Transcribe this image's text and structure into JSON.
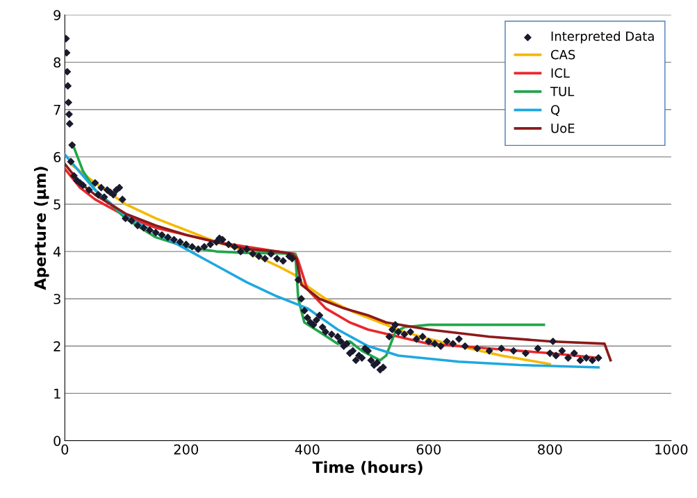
{
  "chart_data": {
    "type": "line",
    "xlabel": "Time (hours)",
    "ylabel": "Aperture (µm)",
    "xlim": [
      0,
      1000
    ],
    "ylim": [
      0,
      9
    ],
    "xticks": [
      0,
      200,
      400,
      600,
      800,
      1000
    ],
    "yticks": [
      0,
      1,
      2,
      3,
      4,
      5,
      6,
      7,
      8,
      9
    ],
    "grid": "y",
    "legend": "top right",
    "series": [
      {
        "name": "Interpreted Data",
        "type": "scatter",
        "marker": "diamond",
        "color": "#1a1a2e",
        "x": [
          2,
          3,
          4,
          5,
          6,
          7,
          8,
          12,
          10,
          15,
          20,
          25,
          30,
          40,
          50,
          55,
          60,
          65,
          70,
          75,
          80,
          85,
          90,
          95,
          100,
          110,
          120,
          130,
          140,
          150,
          160,
          170,
          180,
          190,
          200,
          210,
          220,
          230,
          240,
          250,
          255,
          260,
          270,
          280,
          290,
          300,
          310,
          320,
          330,
          340,
          350,
          360,
          370,
          375,
          385,
          390,
          395,
          400,
          405,
          410,
          415,
          420,
          425,
          430,
          440,
          450,
          455,
          460,
          465,
          470,
          475,
          480,
          485,
          490,
          495,
          500,
          505,
          510,
          515,
          520,
          525,
          535,
          540,
          545,
          550,
          560,
          570,
          580,
          590,
          600,
          610,
          620,
          630,
          640,
          650,
          660,
          680,
          700,
          720,
          740,
          760,
          780,
          800,
          805,
          810,
          820,
          830,
          840,
          850,
          860,
          870,
          880
        ],
        "values": [
          8.5,
          8.2,
          7.8,
          7.5,
          7.15,
          6.9,
          6.7,
          6.25,
          5.9,
          5.6,
          5.5,
          5.45,
          5.4,
          5.3,
          5.45,
          5.2,
          5.35,
          5.15,
          5.3,
          5.25,
          5.2,
          5.3,
          5.35,
          5.1,
          4.7,
          4.65,
          4.55,
          4.5,
          4.45,
          4.4,
          4.35,
          4.3,
          4.25,
          4.2,
          4.15,
          4.1,
          4.05,
          4.1,
          4.15,
          4.2,
          4.28,
          4.25,
          4.15,
          4.1,
          4.0,
          4.05,
          3.95,
          3.9,
          3.85,
          3.95,
          3.85,
          3.8,
          3.9,
          3.85,
          3.4,
          3.0,
          2.75,
          2.6,
          2.5,
          2.45,
          2.55,
          2.65,
          2.4,
          2.3,
          2.25,
          2.2,
          2.1,
          2.0,
          2.05,
          1.85,
          1.9,
          1.7,
          1.8,
          1.75,
          1.95,
          1.9,
          1.7,
          1.6,
          1.65,
          1.5,
          1.55,
          2.2,
          2.35,
          2.45,
          2.3,
          2.25,
          2.3,
          2.15,
          2.2,
          2.1,
          2.05,
          2.0,
          2.1,
          2.05,
          2.15,
          2.0,
          1.95,
          1.9,
          1.95,
          1.9,
          1.85,
          1.95,
          1.85,
          2.1,
          1.8,
          1.9,
          1.75,
          1.85,
          1.7,
          1.75,
          1.7,
          1.75
        ]
      },
      {
        "name": "CAS",
        "color": "#f5b800",
        "x": [
          10,
          50,
          100,
          150,
          200,
          250,
          300,
          350,
          380,
          390,
          430,
          480,
          520,
          560,
          600,
          650,
          720,
          800
        ],
        "values": [
          5.85,
          5.45,
          5.0,
          4.7,
          4.45,
          4.2,
          4.0,
          3.7,
          3.5,
          3.35,
          3.0,
          2.7,
          2.5,
          2.3,
          2.15,
          2.0,
          1.8,
          1.62
        ]
      },
      {
        "name": "ICL",
        "color": "#e8282b",
        "x": [
          0,
          25,
          50,
          100,
          150,
          200,
          250,
          300,
          350,
          380,
          385,
          400,
          430,
          470,
          500,
          550,
          600,
          700,
          800,
          880
        ],
        "values": [
          5.75,
          5.35,
          5.1,
          4.75,
          4.5,
          4.35,
          4.2,
          4.1,
          4.0,
          3.95,
          3.8,
          3.2,
          2.8,
          2.5,
          2.35,
          2.2,
          2.05,
          1.95,
          1.85,
          1.75
        ]
      },
      {
        "name": "TUL",
        "color": "#22a54a",
        "x": [
          15,
          30,
          50,
          100,
          150,
          200,
          250,
          300,
          350,
          380,
          385,
          395,
          420,
          450,
          470,
          490,
          520,
          530,
          545,
          560,
          600,
          700,
          790
        ],
        "values": [
          6.2,
          5.7,
          5.3,
          4.7,
          4.3,
          4.1,
          4.0,
          3.97,
          3.96,
          3.95,
          3.0,
          2.5,
          2.3,
          2.05,
          2.1,
          1.9,
          1.7,
          1.8,
          2.3,
          2.4,
          2.45,
          2.45,
          2.45
        ]
      },
      {
        "name": "Q",
        "color": "#1ea8e0",
        "x": [
          0,
          50,
          100,
          150,
          200,
          250,
          300,
          350,
          400,
          450,
          500,
          550,
          650,
          750,
          880
        ],
        "values": [
          6.05,
          5.3,
          4.75,
          4.4,
          4.05,
          3.7,
          3.35,
          3.05,
          2.8,
          2.35,
          2.0,
          1.8,
          1.67,
          1.6,
          1.55
        ]
      },
      {
        "name": "UoE",
        "color": "#8b1a1a",
        "x": [
          0,
          25,
          50,
          100,
          150,
          200,
          250,
          300,
          350,
          375,
          382,
          390,
          420,
          460,
          500,
          530,
          600,
          700,
          800,
          890,
          900
        ],
        "values": [
          5.85,
          5.45,
          5.2,
          4.8,
          4.55,
          4.35,
          4.2,
          4.05,
          4.0,
          3.95,
          3.85,
          3.3,
          3.0,
          2.8,
          2.65,
          2.5,
          2.35,
          2.2,
          2.1,
          2.05,
          1.7
        ]
      }
    ]
  }
}
